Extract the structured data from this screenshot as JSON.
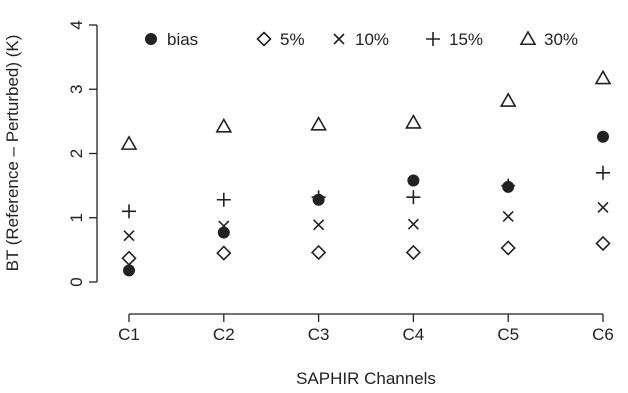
{
  "chart_data": {
    "type": "scatter",
    "xlabel": "SAPHIR Channels",
    "ylabel": "BT (Reference – Perturbed) (K)",
    "categories": [
      "C1",
      "C2",
      "C3",
      "C4",
      "C5",
      "C6"
    ],
    "ylim": [
      0,
      4
    ],
    "yticks": [
      "0",
      "1",
      "2",
      "3",
      "4"
    ],
    "grid": false,
    "legend_position": "top",
    "series": [
      {
        "name": "bias",
        "marker": "filled-circle",
        "values": [
          0.18,
          0.77,
          1.28,
          1.58,
          1.48,
          2.26
        ]
      },
      {
        "name": "5%",
        "marker": "diamond",
        "values": [
          0.37,
          0.45,
          0.46,
          0.46,
          0.53,
          0.6
        ]
      },
      {
        "name": "10%",
        "marker": "cross",
        "values": [
          0.72,
          0.87,
          0.89,
          0.9,
          1.02,
          1.16
        ]
      },
      {
        "name": "15%",
        "marker": "plus",
        "values": [
          1.1,
          1.28,
          1.32,
          1.32,
          1.5,
          1.7
        ]
      },
      {
        "name": "30%",
        "marker": "triangle",
        "values": [
          2.15,
          2.42,
          2.45,
          2.48,
          2.82,
          3.17
        ]
      }
    ]
  }
}
